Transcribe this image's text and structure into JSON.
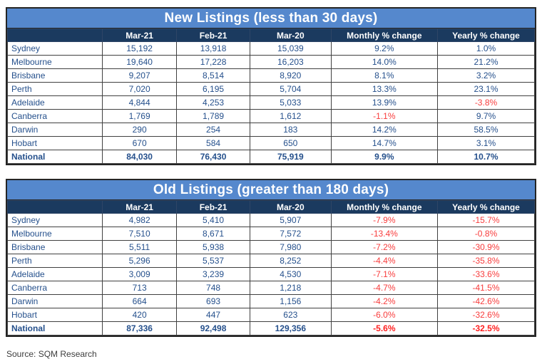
{
  "colors": {
    "title_bar": "#5588CD",
    "header": "#1B3A5F",
    "text_blue": "#25508C",
    "negative_red": "#F83C3C"
  },
  "page": {
    "source_note": "Source: SQM Research"
  },
  "tables": [
    {
      "title": "New Listings (less than 30 days)",
      "columns": [
        "Mar-21",
        "Feb-21",
        "Mar-20",
        "Monthly % change",
        "Yearly % change"
      ],
      "rows": [
        {
          "name": "Sydney",
          "values": [
            "15,192",
            "13,918",
            "15,039",
            "9.2%",
            "1.0%"
          ]
        },
        {
          "name": "Melbourne",
          "values": [
            "19,640",
            "17,228",
            "16,203",
            "14.0%",
            "21.2%"
          ]
        },
        {
          "name": "Brisbane",
          "values": [
            "9,207",
            "8,514",
            "8,920",
            "8.1%",
            "3.2%"
          ]
        },
        {
          "name": "Perth",
          "values": [
            "7,020",
            "6,195",
            "5,704",
            "13.3%",
            "23.1%"
          ]
        },
        {
          "name": "Adelaide",
          "values": [
            "4,844",
            "4,253",
            "5,033",
            "13.9%",
            "-3.8%"
          ]
        },
        {
          "name": "Canberra",
          "values": [
            "1,769",
            "1,789",
            "1,612",
            "-1.1%",
            "9.7%"
          ]
        },
        {
          "name": "Darwin",
          "values": [
            "290",
            "254",
            "183",
            "14.2%",
            "58.5%"
          ]
        },
        {
          "name": "Hobart",
          "values": [
            "670",
            "584",
            "650",
            "14.7%",
            "3.1%"
          ]
        },
        {
          "name": "National",
          "values": [
            "84,030",
            "76,430",
            "75,919",
            "9.9%",
            "10.7%"
          ]
        }
      ]
    },
    {
      "title": "Old Listings (greater than 180 days)",
      "columns": [
        "Mar-21",
        "Feb-21",
        "Mar-20",
        "Monthly % change",
        "Yearly % change"
      ],
      "rows": [
        {
          "name": "Sydney",
          "values": [
            "4,982",
            "5,410",
            "5,907",
            "-7.9%",
            "-15.7%"
          ]
        },
        {
          "name": "Melbourne",
          "values": [
            "7,510",
            "8,671",
            "7,572",
            "-13.4%",
            "-0.8%"
          ]
        },
        {
          "name": "Brisbane",
          "values": [
            "5,511",
            "5,938",
            "7,980",
            "-7.2%",
            "-30.9%"
          ]
        },
        {
          "name": "Perth",
          "values": [
            "5,296",
            "5,537",
            "8,252",
            "-4.4%",
            "-35.8%"
          ]
        },
        {
          "name": "Adelaide",
          "values": [
            "3,009",
            "3,239",
            "4,530",
            "-7.1%",
            "-33.6%"
          ]
        },
        {
          "name": "Canberra",
          "values": [
            "713",
            "748",
            "1,218",
            "-4.7%",
            "-41.5%"
          ]
        },
        {
          "name": "Darwin",
          "values": [
            "664",
            "693",
            "1,156",
            "-4.2%",
            "-42.6%"
          ]
        },
        {
          "name": "Hobart",
          "values": [
            "420",
            "447",
            "623",
            "-6.0%",
            "-32.6%"
          ]
        },
        {
          "name": "National",
          "values": [
            "87,336",
            "92,498",
            "129,356",
            "-5.6%",
            "-32.5%"
          ]
        }
      ]
    }
  ]
}
